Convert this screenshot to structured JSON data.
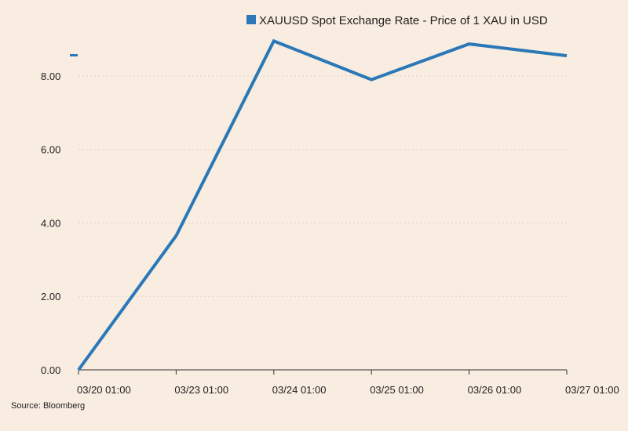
{
  "chart_data": {
    "type": "line",
    "title": "",
    "xlabel": "",
    "ylabel": "",
    "categories": [
      "03/20 01:00",
      "03/23 01:00",
      "03/24 01:00",
      "03/25 01:00",
      "03/26 01:00",
      "03/27 01:00"
    ],
    "series": [
      {
        "name": "XAUUSD Spot Exchange Rate - Price of 1 XAU in USD",
        "values": [
          0.0,
          3.65,
          8.95,
          7.9,
          8.87,
          8.55
        ],
        "color": "#2a78b7"
      }
    ],
    "ylim": [
      0,
      9
    ],
    "yticks": [
      "0.00",
      "2.00",
      "4.00",
      "6.00",
      "8.00"
    ],
    "grid": "horizontal-dotted",
    "legend_position": "top-right",
    "source": "Source: Bloomberg",
    "colors": {
      "background": "#f9ece1",
      "line": "#2a78b7",
      "grid": "#ddd2c6",
      "axis": "#333333"
    }
  }
}
